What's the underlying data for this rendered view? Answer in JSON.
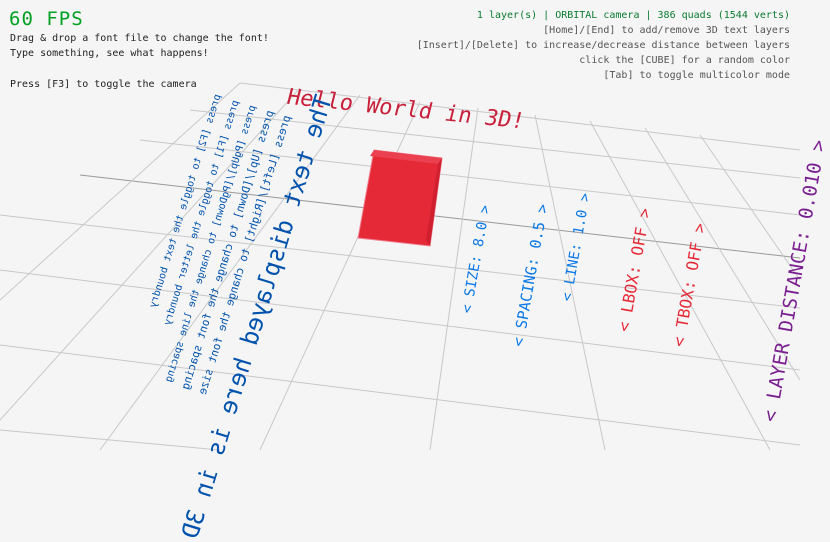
{
  "hud": {
    "fps": "60 FPS",
    "line1": "Drag & drop a font file to change the font!",
    "line2": "Type something, see what happens!",
    "line3": "Press [F3] to toggle the camera",
    "status": "1 layer(s) | ORBITAL camera |  386 quads (1544 verts)",
    "help1": "[Home]/[End] to add/remove 3D text layers",
    "help2": "[Insert]/[Delete] to increase/decrease distance between layers",
    "help3": "click the [CUBE] for a random color",
    "help4": "[Tab] to toggle multicolor mode"
  },
  "scene": {
    "title": "Hello World in 3D!",
    "main_text": "The text displayed here is in 3D",
    "instructions": [
      "press [Left]/[Right] to change the font size",
      "press [Up]/[Down] to change the font spacing",
      "press [PgUp]/[PgDown] to change the line spacing",
      "press [F1] to toggle the letter boundry",
      "press [F2] to toggle the text boundry"
    ],
    "settings": [
      {
        "label": "< SIZE: 8.0 >",
        "color": "#0a78e6"
      },
      {
        "label": "< SPACING: 0.5 >",
        "color": "#0a78e6"
      },
      {
        "label": "< LINE: 1.0 >",
        "color": "#0a78e6"
      },
      {
        "label": "< LBOX: OFF >",
        "color": "#e62937"
      },
      {
        "label": "< TBOX: OFF >",
        "color": "#e62937"
      },
      {
        "label": "< LAYER DISTANCE: 0.010 >",
        "color": "#7a1f8f"
      }
    ],
    "cube_color": "#e62937",
    "text_color": "#0052ac"
  }
}
